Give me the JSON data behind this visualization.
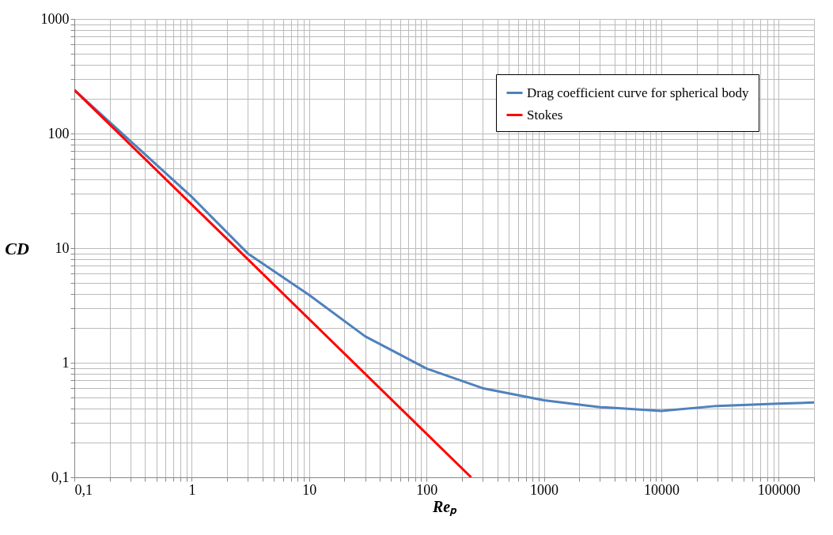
{
  "chart_data": {
    "type": "line",
    "xlabel": "Reₚ",
    "ylabel": "CD",
    "series": [
      {
        "name": "Drag coefficient curve for spherical body",
        "color": "#4f81bd",
        "x": [
          0.1,
          1,
          3,
          10,
          30,
          100,
          300,
          1000,
          3000,
          10000,
          30000,
          100000,
          200000
        ],
        "values": [
          240,
          28,
          9,
          3.9,
          1.7,
          0.89,
          0.6,
          0.47,
          0.41,
          0.38,
          0.42,
          0.44,
          0.45
        ]
      },
      {
        "name": "Stokes",
        "color": "#ff0000",
        "x": [
          0.1,
          240
        ],
        "values": [
          240,
          0.1
        ]
      }
    ],
    "log": "xy",
    "xlim": [
      0.1,
      200000
    ],
    "ylim": [
      0.1,
      1000
    ],
    "xticks": [
      {
        "value": 0.1,
        "label": "0,1"
      },
      {
        "value": 0.2,
        "label": null
      },
      {
        "value": 0.3,
        "label": null
      },
      {
        "value": 0.4,
        "label": null
      },
      {
        "value": 0.5,
        "label": null
      },
      {
        "value": 0.6,
        "label": null
      },
      {
        "value": 0.7,
        "label": null
      },
      {
        "value": 0.8,
        "label": null
      },
      {
        "value": 0.9,
        "label": null
      },
      1,
      {
        "value": 2,
        "label": null
      },
      {
        "value": 3,
        "label": null
      },
      {
        "value": 4,
        "label": null
      },
      {
        "value": 5,
        "label": null
      },
      {
        "value": 6,
        "label": null
      },
      {
        "value": 7,
        "label": null
      },
      {
        "value": 8,
        "label": null
      },
      {
        "value": 9,
        "label": null
      },
      10,
      {
        "value": 20,
        "label": null
      },
      {
        "value": 30,
        "label": null
      },
      {
        "value": 40,
        "label": null
      },
      {
        "value": 50,
        "label": null
      },
      {
        "value": 60,
        "label": null
      },
      {
        "value": 70,
        "label": null
      },
      {
        "value": 80,
        "label": null
      },
      {
        "value": 90,
        "label": null
      },
      100,
      {
        "value": 200,
        "label": null
      },
      {
        "value": 300,
        "label": null
      },
      {
        "value": 400,
        "label": null
      },
      {
        "value": 500,
        "label": null
      },
      {
        "value": 600,
        "label": null
      },
      {
        "value": 700,
        "label": null
      },
      {
        "value": 800,
        "label": null
      },
      {
        "value": 900,
        "label": null
      },
      1000,
      {
        "value": 2000,
        "label": null
      },
      {
        "value": 3000,
        "label": null
      },
      {
        "value": 4000,
        "label": null
      },
      {
        "value": 5000,
        "label": null
      },
      {
        "value": 6000,
        "label": null
      },
      {
        "value": 7000,
        "label": null
      },
      {
        "value": 8000,
        "label": null
      },
      {
        "value": 9000,
        "label": null
      },
      10000,
      {
        "value": 20000,
        "label": null
      },
      {
        "value": 30000,
        "label": null
      },
      {
        "value": 40000,
        "label": null
      },
      {
        "value": 50000,
        "label": null
      },
      {
        "value": 60000,
        "label": null
      },
      {
        "value": 70000,
        "label": null
      },
      {
        "value": 80000,
        "label": null
      },
      {
        "value": 90000,
        "label": null
      },
      100000,
      {
        "value": 200000,
        "label": null
      }
    ],
    "yticks": [
      {
        "value": 0.1,
        "label": "0,1"
      },
      {
        "value": 0.2,
        "label": null
      },
      {
        "value": 0.3,
        "label": null
      },
      {
        "value": 0.4,
        "label": null
      },
      {
        "value": 0.5,
        "label": null
      },
      {
        "value": 0.6,
        "label": null
      },
      {
        "value": 0.7,
        "label": null
      },
      {
        "value": 0.8,
        "label": null
      },
      {
        "value": 0.9,
        "label": null
      },
      1,
      {
        "value": 2,
        "label": null
      },
      {
        "value": 3,
        "label": null
      },
      {
        "value": 4,
        "label": null
      },
      {
        "value": 5,
        "label": null
      },
      {
        "value": 6,
        "label": null
      },
      {
        "value": 7,
        "label": null
      },
      {
        "value": 8,
        "label": null
      },
      {
        "value": 9,
        "label": null
      },
      10,
      {
        "value": 20,
        "label": null
      },
      {
        "value": 30,
        "label": null
      },
      {
        "value": 40,
        "label": null
      },
      {
        "value": 50,
        "label": null
      },
      {
        "value": 60,
        "label": null
      },
      {
        "value": 70,
        "label": null
      },
      {
        "value": 80,
        "label": null
      },
      {
        "value": 90,
        "label": null
      },
      100,
      {
        "value": 200,
        "label": null
      },
      {
        "value": 300,
        "label": null
      },
      {
        "value": 400,
        "label": null
      },
      {
        "value": 500,
        "label": null
      },
      {
        "value": 600,
        "label": null
      },
      {
        "value": 700,
        "label": null
      },
      {
        "value": 800,
        "label": null
      },
      {
        "value": 900,
        "label": null
      },
      1000
    ],
    "grid": true,
    "legend": "top right",
    "marker": "none",
    "line_style": "solid"
  }
}
